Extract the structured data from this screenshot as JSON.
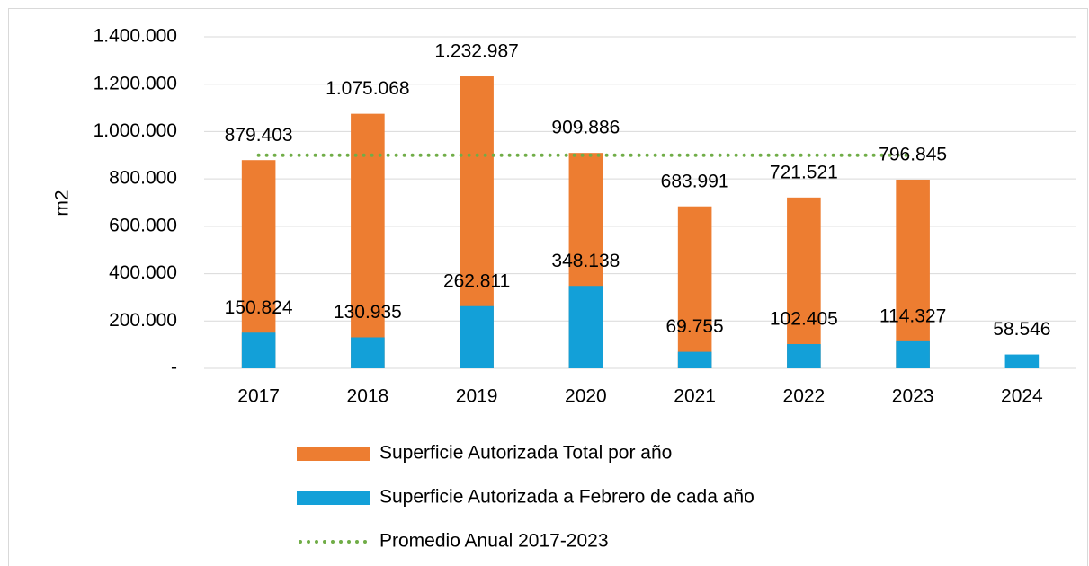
{
  "chart_data": {
    "type": "bar",
    "y_label": "m2",
    "categories": [
      "2017",
      "2018",
      "2019",
      "2020",
      "2021",
      "2022",
      "2023",
      "2024"
    ],
    "series": [
      {
        "name": "Superficie Autorizada Total por año",
        "color": "#ed7d31",
        "values": [
          879403,
          1075068,
          1232987,
          909886,
          683991,
          721521,
          796845,
          null
        ],
        "value_labels": [
          "879.403",
          "1.075.068",
          "1.232.987",
          "909.886",
          "683.991",
          "721.521",
          "796.845",
          null
        ]
      },
      {
        "name": "Superficie Autorizada a Febrero de cada año",
        "color": "#13a0d8",
        "values": [
          150824,
          130935,
          262811,
          348138,
          69755,
          102405,
          114327,
          58546
        ],
        "value_labels": [
          "150.824",
          "130.935",
          "262.811",
          "348.138",
          "69.755",
          "102.405",
          "114.327",
          "58.546"
        ]
      },
      {
        "name": "Promedio Anual 2017-2023",
        "color": "#70ad47",
        "type": "line",
        "line_style": "dotted",
        "values": [
          899957,
          899957,
          899957,
          899957,
          899957,
          899957,
          899957,
          null
        ]
      }
    ],
    "ylim": [
      0,
      1400000
    ],
    "yticks": [
      {
        "value": 0,
        "label": "-"
      },
      {
        "value": 200000,
        "label": "200.000"
      },
      {
        "value": 400000,
        "label": "400.000"
      },
      {
        "value": 600000,
        "label": "600.000"
      },
      {
        "value": 800000,
        "label": "800.000"
      },
      {
        "value": 1000000,
        "label": "1.000.000"
      },
      {
        "value": 1200000,
        "label": "1.200.000"
      },
      {
        "value": 1400000,
        "label": "1.400.000"
      }
    ],
    "grid": true
  }
}
